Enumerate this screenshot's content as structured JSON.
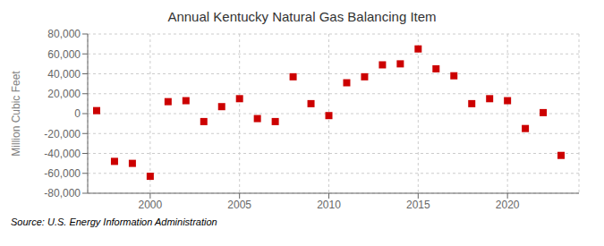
{
  "chart_data": {
    "type": "scatter",
    "title": "Annual Kentucky Natural Gas Balancing Item",
    "y_label": "Million Cubic Feet",
    "annotations": [
      "Source: U.S. Energy Information Administration"
    ],
    "x": [
      1997,
      1998,
      1999,
      2000,
      2001,
      2002,
      2003,
      2004,
      2005,
      2006,
      2007,
      2008,
      2009,
      2010,
      2011,
      2012,
      2013,
      2014,
      2015,
      2016,
      2017,
      2018,
      2019,
      2020,
      2021,
      2022,
      2023
    ],
    "values": [
      3000,
      -48000,
      -50000,
      -63000,
      12000,
      13000,
      -8000,
      7000,
      15000,
      -5000,
      -8000,
      37000,
      10000,
      -2000,
      31000,
      37000,
      49000,
      50000,
      65000,
      45000,
      38000,
      10000,
      15000,
      13000,
      -15000,
      1000,
      -42000
    ],
    "color": "#cc0000",
    "marker": "square",
    "xlim": [
      1996.5,
      2024
    ],
    "xticks": [
      2000,
      2005,
      2010,
      2015,
      2020
    ],
    "ylim": [
      -80000,
      80000
    ],
    "yticks": [
      {
        "value": -80000,
        "label": "-80,000"
      },
      {
        "value": -60000,
        "label": "-60,000"
      },
      {
        "value": -40000,
        "label": "-40,000"
      },
      {
        "value": -20000,
        "label": "-20,000"
      },
      0,
      {
        "value": 20000,
        "label": "20,000"
      },
      {
        "value": 40000,
        "label": "40,000"
      },
      {
        "value": 60000,
        "label": "60,000"
      },
      {
        "value": 80000,
        "label": "80,000"
      }
    ],
    "grid": true
  }
}
